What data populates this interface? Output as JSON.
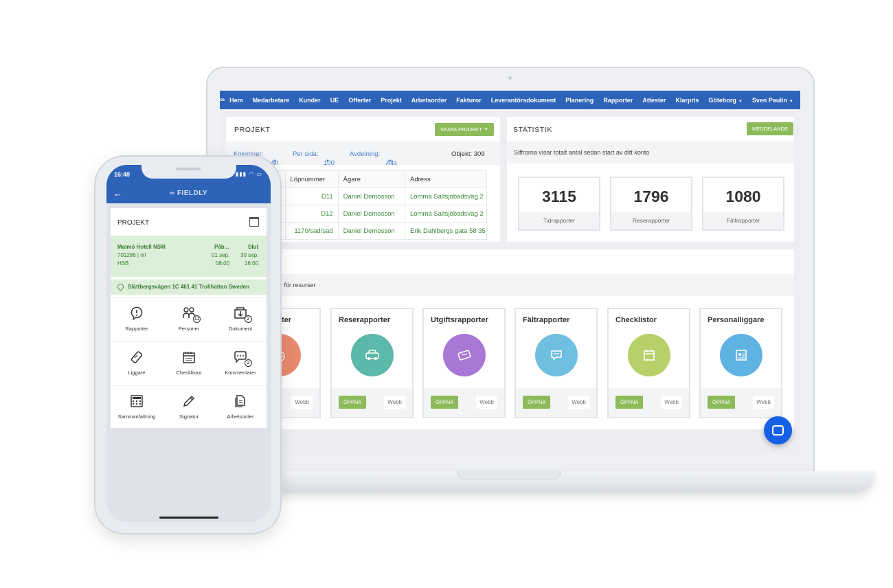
{
  "laptop": {
    "nav": {
      "items": [
        "Hem",
        "Medarbetare",
        "Kunder",
        "UE",
        "Offerter",
        "Projekt",
        "Arbetsorder",
        "Fakturor",
        "Leverantörsdokument",
        "Planering",
        "Rapporter",
        "Attester",
        "Klarpris"
      ],
      "location": "Göteborg",
      "user": "Sven Paulin"
    },
    "projekt": {
      "title": "PROJEKT",
      "create_button": "SKAPA PROJEKT",
      "filters": {
        "columns_label": "Kolumner:",
        "columns_value": "All",
        "per_page_label": "Per sida:",
        "per_page_value": "100",
        "department_label": "Avdelning:",
        "department_value": "Alla",
        "count": "Objekt: 309"
      },
      "table": {
        "headers": [
          "Löpnummer",
          "Ägare",
          "Adress"
        ],
        "rows": [
          [
            "D11",
            "Daniel Demosson",
            "Lomma Saltsjöbadsväg 2"
          ],
          [
            "D12",
            "Daniel Demosson",
            "Lomma Saltsjöbadsväg 2"
          ],
          [
            "1170/sad/sad",
            "Daniel Demosson",
            "Erik Dahlbergs gata 58 35"
          ]
        ]
      }
    },
    "statistik": {
      "title": "STATISTIK",
      "message_button": "MEDDELANDE",
      "subtitle": "Siffrorna visar totalt antal sedan start av ditt konto",
      "boxes": [
        {
          "value": "3115",
          "label": "Tidrapporter"
        },
        {
          "value": "1796",
          "label": "Reserapporter"
        },
        {
          "value": "1080",
          "label": "Fältrapporter"
        }
      ]
    },
    "resurser": {
      "subtitle": "r för resurser",
      "open_label": "ÖPPNA",
      "web_label": "Webb",
      "cards": [
        {
          "title": "Tidrapporter",
          "visible_title": "ter",
          "color": "#e98a6f",
          "icon": "clock-icon"
        },
        {
          "title": "Reserapporter",
          "visible_title": "Reserapporter",
          "color": "#5cb8a8",
          "icon": "car-icon"
        },
        {
          "title": "Utgiftsrapporter",
          "visible_title": "Utgiftsrapporter",
          "color": "#a977d6",
          "icon": "ticket-icon"
        },
        {
          "title": "Fältrapporter",
          "visible_title": "Fältrapporter",
          "color": "#6fc0e0",
          "icon": "chat-icon"
        },
        {
          "title": "Checklistor",
          "visible_title": "Checklistor",
          "color": "#b7d06a",
          "icon": "calendar-icon"
        },
        {
          "title": "Personalliggare",
          "visible_title": "Personalliggare",
          "color": "#5fb3e3",
          "icon": "id-card-icon"
        }
      ]
    }
  },
  "phone": {
    "time": "16:48",
    "brand": "FIELDLY",
    "card_title": "PROJEKT",
    "project": {
      "name": "Malmö Hotell NSM",
      "number": "701286 | nil",
      "customer": "HSB",
      "start_label": "Påb...",
      "start_date": "01 sep.",
      "start_time": "08:00",
      "end_label": "Slut",
      "end_date": "30 sep.",
      "end_time": "16:00",
      "address": "Slättbergsvägen 1C 461 41 Trollhättan Sweden"
    },
    "actions": [
      {
        "label": "Rapporter",
        "icon": "report-icon",
        "badge": ""
      },
      {
        "label": "Personer",
        "icon": "people-icon",
        "badge": "11"
      },
      {
        "label": "Dokument",
        "icon": "document-icon",
        "badge": "2"
      },
      {
        "label": "Liggare",
        "icon": "ligg-icon",
        "badge": ""
      },
      {
        "label": "Checklistor",
        "icon": "checklist-icon",
        "badge": ""
      },
      {
        "label": "Kommentarer",
        "icon": "comments-icon",
        "badge": "2"
      },
      {
        "label": "Sammanfattning",
        "icon": "calculator-icon",
        "badge": ""
      },
      {
        "label": "Signatur",
        "icon": "pen-icon",
        "badge": ""
      },
      {
        "label": "Arbetsorder",
        "icon": "workorder-icon",
        "badge": ""
      }
    ]
  }
}
